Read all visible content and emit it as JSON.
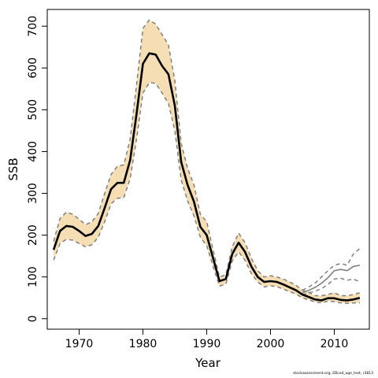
{
  "chart_data": {
    "type": "line",
    "xlabel": "Year",
    "ylabel": "SSB",
    "xlim": [
      1965,
      2015.5
    ],
    "ylim": [
      -25,
      740
    ],
    "xticks": [
      1970,
      1980,
      1990,
      2000,
      2010
    ],
    "yticks": [
      0,
      100,
      200,
      300,
      400,
      500,
      600,
      700
    ],
    "grid": false,
    "legend": "none",
    "colors": {
      "band": "#f5deb3",
      "estimate": "#000000",
      "bounds": "#808080",
      "retro": "#808080"
    },
    "series": [
      {
        "role": "estimate",
        "x": [
          1966,
          1967,
          1968,
          1969,
          1970,
          1971,
          1972,
          1973,
          1974,
          1975,
          1976,
          1977,
          1978,
          1979,
          1980,
          1981,
          1982,
          1983,
          1984,
          1985,
          1986,
          1987,
          1988,
          1989,
          1990,
          1991,
          1992,
          1993,
          1994,
          1995,
          1996,
          1997,
          1998,
          1999,
          2000,
          2001,
          2002,
          2003,
          2004,
          2005,
          2006,
          2007,
          2008,
          2009,
          2010,
          2011,
          2012,
          2013,
          2014
        ],
        "y": [
          165,
          210,
          222,
          220,
          210,
          198,
          203,
          222,
          265,
          310,
          325,
          325,
          380,
          490,
          610,
          635,
          632,
          605,
          585,
          510,
          375,
          320,
          280,
          220,
          200,
          145,
          90,
          95,
          155,
          182,
          160,
          125,
          100,
          88,
          90,
          88,
          82,
          75,
          68,
          58,
          52,
          46,
          44,
          49,
          49,
          45,
          44,
          46,
          50
        ]
      },
      {
        "role": "upper-bound",
        "x": [
          1966,
          1967,
          1968,
          1969,
          1970,
          1971,
          1972,
          1973,
          1974,
          1975,
          1976,
          1977,
          1978,
          1979,
          1980,
          1981,
          1982,
          1983,
          1984,
          1985,
          1986,
          1987,
          1988,
          1989,
          1990,
          1991,
          1992,
          1993,
          1994,
          1995,
          1996,
          1997,
          1998,
          1999,
          2000,
          2001,
          2002,
          2003,
          2004,
          2005,
          2006,
          2007,
          2008,
          2009,
          2010,
          2011,
          2012,
          2013,
          2014
        ],
        "y": [
          185,
          240,
          255,
          250,
          238,
          225,
          232,
          252,
          300,
          345,
          365,
          368,
          430,
          560,
          695,
          715,
          705,
          680,
          655,
          570,
          420,
          360,
          320,
          250,
          232,
          165,
          100,
          105,
          172,
          205,
          182,
          145,
          115,
          100,
          103,
          100,
          95,
          88,
          80,
          68,
          63,
          55,
          55,
          58,
          62,
          55,
          55,
          58,
          62
        ]
      },
      {
        "role": "lower-bound",
        "x": [
          1966,
          1967,
          1968,
          1969,
          1970,
          1971,
          1972,
          1973,
          1974,
          1975,
          1976,
          1977,
          1978,
          1979,
          1980,
          1981,
          1982,
          1983,
          1984,
          1985,
          1986,
          1987,
          1988,
          1989,
          1990,
          1991,
          1992,
          1993,
          1994,
          1995,
          1996,
          1997,
          1998,
          1999,
          2000,
          2001,
          2002,
          2003,
          2004,
          2005,
          2006,
          2007,
          2008,
          2009,
          2010,
          2011,
          2012,
          2013,
          2014
        ],
        "y": [
          140,
          180,
          190,
          188,
          180,
          172,
          177,
          195,
          232,
          275,
          288,
          290,
          335,
          430,
          540,
          565,
          563,
          540,
          515,
          450,
          332,
          282,
          246,
          195,
          175,
          125,
          78,
          83,
          138,
          160,
          140,
          108,
          88,
          76,
          79,
          77,
          71,
          65,
          59,
          50,
          45,
          40,
          38,
          42,
          41,
          38,
          37,
          38,
          38
        ]
      },
      {
        "role": "retrospective",
        "x": [
          2005,
          2006,
          2007,
          2008,
          2009,
          2010,
          2011,
          2012,
          2013,
          2014
        ],
        "y": [
          62,
          68,
          75,
          85,
          98,
          115,
          118,
          115,
          125,
          128
        ]
      },
      {
        "role": "retrospective-upper",
        "x": [
          2005,
          2006,
          2007,
          2008,
          2009,
          2010,
          2011,
          2012,
          2013,
          2014
        ],
        "y": [
          68,
          76,
          85,
          100,
          115,
          128,
          132,
          128,
          155,
          168
        ]
      },
      {
        "role": "retrospective-lower",
        "x": [
          2005,
          2006,
          2007,
          2008,
          2009,
          2010,
          2011,
          2012,
          2013,
          2014
        ],
        "y": [
          57,
          62,
          66,
          72,
          82,
          95,
          97,
          92,
          95,
          88
        ]
      }
    ],
    "footnote": "stockassessment.org, EBcod_age_test, r3813"
  }
}
